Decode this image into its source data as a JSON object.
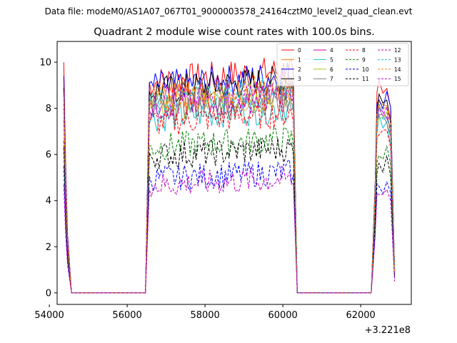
{
  "figure": {
    "suptitle": "Data file: modeM0/AS1A07_067T01_9000003578_24164cztM0_level2_quad_clean.evt",
    "title": "Quadrant 2 module wise count rates with 100.0s bins.",
    "x_offset_label": "+3.221e8"
  },
  "chart_data": {
    "type": "line",
    "title": "Quadrant 2 module wise count rates with 100.0s bins.",
    "xlabel": "",
    "ylabel": "",
    "x_offset": 322100000,
    "xlim": [
      54200,
      63300
    ],
    "ylim": [
      -0.5,
      10.9
    ],
    "xticks": [
      54000,
      56000,
      58000,
      60000,
      62000
    ],
    "xtick_labels": [
      "54000",
      "56000",
      "58000",
      "60000",
      "62000"
    ],
    "yticks": [
      0,
      2,
      4,
      6,
      8,
      10
    ],
    "ytick_labels": [
      "0",
      "2",
      "4",
      "6",
      "8",
      "10"
    ],
    "grid": false,
    "legend_position": "top-right",
    "legend_columns": 4,
    "segments": [
      {
        "x_start": 54370,
        "x_end": 54570,
        "bin": 100
      },
      {
        "x_start": 56470,
        "x_end": 60370,
        "bin": 100
      },
      {
        "x_start": 62270,
        "x_end": 62870,
        "bin": 100
      }
    ],
    "series": [
      {
        "name": "0",
        "color": "#ff0000",
        "dash": "solid",
        "levels": [
          10.0,
          9.4,
          0.9
        ]
      },
      {
        "name": "1",
        "color": "#ff7f0e",
        "dash": "solid",
        "levels": [
          8.6,
          8.7,
          0.9
        ]
      },
      {
        "name": "2",
        "color": "#0000ff",
        "dash": "solid",
        "levels": [
          9.4,
          9.2,
          1.0
        ]
      },
      {
        "name": "3",
        "color": "#000000",
        "dash": "solid",
        "levels": [
          8.9,
          9.0,
          0.9
        ]
      },
      {
        "name": "4",
        "color": "#bf00bf",
        "dash": "solid",
        "levels": [
          8.7,
          8.5,
          0.9
        ]
      },
      {
        "name": "5",
        "color": "#17becf",
        "dash": "solid",
        "levels": [
          8.0,
          7.8,
          0.8
        ]
      },
      {
        "name": "6",
        "color": "#bcbd22",
        "dash": "solid",
        "levels": [
          8.2,
          8.3,
          0.9
        ]
      },
      {
        "name": "7",
        "color": "#7f7f7f",
        "dash": "solid",
        "levels": [
          8.0,
          8.2,
          0.9
        ]
      },
      {
        "name": "8",
        "color": "#ff0000",
        "dash": "dashed",
        "levels": [
          7.5,
          7.6,
          0.9
        ]
      },
      {
        "name": "9",
        "color": "#008000",
        "dash": "dashed",
        "levels": [
          6.6,
          6.5,
          0.7
        ]
      },
      {
        "name": "10",
        "color": "#0000ff",
        "dash": "dashed",
        "levels": [
          5.5,
          5.1,
          0.6
        ]
      },
      {
        "name": "11",
        "color": "#000000",
        "dash": "dashed",
        "levels": [
          6.3,
          6.1,
          0.7
        ]
      },
      {
        "name": "12",
        "color": "#bf00bf",
        "dash": "dashed",
        "levels": [
          8.2,
          8.3,
          0.9
        ]
      },
      {
        "name": "13",
        "color": "#17becf",
        "dash": "dashed",
        "levels": [
          8.5,
          8.6,
          0.9
        ]
      },
      {
        "name": "14",
        "color": "#ff7f0e",
        "dash": "dashed",
        "levels": [
          8.3,
          8.7,
          0.9
        ]
      },
      {
        "name": "15",
        "color": "#bf00bf",
        "dash": "dashed",
        "levels": [
          4.7,
          4.8,
          0.5
        ]
      }
    ]
  }
}
